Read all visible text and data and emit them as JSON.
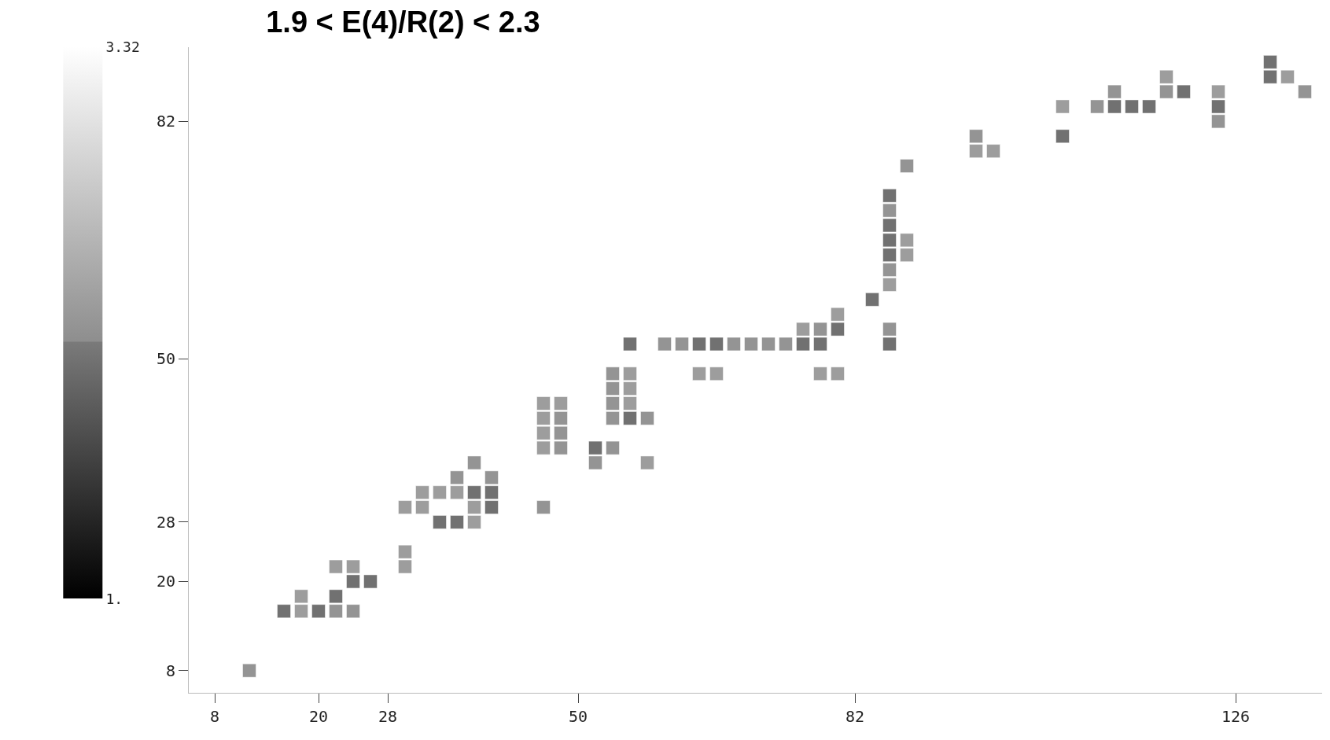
{
  "chart_data": {
    "type": "scatter",
    "title": "1.9 < E(4)/R(2) < 2.3",
    "marker": "square",
    "xlim": [
      5,
      136
    ],
    "xticks": [
      8,
      20,
      28,
      50,
      82,
      126
    ],
    "ylim": [
      5,
      92
    ],
    "yticks": [
      8,
      20,
      28,
      50,
      82
    ],
    "clim": [
      1,
      3.32
    ],
    "cticks": [
      {
        "value": 1,
        "label": "1."
      },
      3.32
    ],
    "series": [
      {
        "x": [
          12,
          16,
          18,
          20,
          22,
          24,
          18,
          22,
          24,
          26,
          22,
          24,
          30,
          30,
          34,
          36,
          38,
          30,
          32,
          38,
          40,
          46,
          32,
          34,
          36,
          38,
          40,
          36,
          40,
          38,
          52,
          58,
          46,
          48,
          52,
          54,
          46,
          48,
          46,
          48,
          54,
          56,
          58,
          46,
          48,
          54,
          56,
          54,
          56,
          54,
          56,
          64,
          66,
          78,
          80,
          56,
          60,
          62,
          64,
          66,
          68,
          70,
          72,
          74,
          76,
          78,
          86,
          76,
          78,
          80,
          86,
          80,
          84,
          86,
          86,
          86,
          88,
          86,
          88,
          86,
          86,
          86,
          88,
          96,
          98,
          96,
          106,
          124,
          106,
          110,
          112,
          114,
          116,
          124,
          112,
          118,
          120,
          124,
          134,
          118,
          130,
          132,
          130
        ],
        "values": [
          8,
          16,
          16,
          16,
          16,
          16,
          18,
          18,
          20,
          20,
          22,
          22,
          22,
          24,
          28,
          28,
          28,
          30,
          30,
          30,
          30,
          30,
          32,
          32,
          32,
          32,
          32,
          34,
          34,
          36,
          36,
          36,
          38,
          38,
          38,
          38,
          40,
          40,
          42,
          42,
          42,
          42,
          42,
          44,
          44,
          44,
          44,
          46,
          46,
          48,
          48,
          48,
          48,
          48,
          48,
          52,
          52,
          52,
          52,
          52,
          52,
          52,
          52,
          52,
          52,
          52,
          52,
          54,
          54,
          54,
          54,
          56,
          58,
          60,
          62,
          64,
          64,
          66,
          66,
          68,
          70,
          72,
          76,
          78,
          78,
          80,
          80,
          82,
          84,
          84,
          84,
          84,
          84,
          84,
          86,
          86,
          86,
          86,
          86,
          88,
          88,
          88,
          90
        ],
        "cvalues": [
          2.15,
          2.0,
          2.25,
          2.0,
          2.15,
          2.15,
          2.25,
          2.0,
          2.0,
          2.0,
          2.25,
          2.25,
          2.25,
          2.25,
          2.0,
          2.0,
          2.25,
          2.25,
          2.25,
          2.25,
          2.0,
          2.15,
          2.25,
          2.25,
          2.25,
          2.0,
          2.0,
          2.15,
          2.15,
          2.15,
          2.15,
          2.25,
          2.25,
          2.15,
          2.0,
          2.15,
          2.25,
          2.15,
          2.25,
          2.15,
          2.15,
          2.0,
          2.15,
          2.25,
          2.25,
          2.15,
          2.25,
          2.15,
          2.25,
          2.15,
          2.25,
          2.25,
          2.25,
          2.25,
          2.25,
          2.0,
          2.15,
          2.15,
          2.0,
          2.0,
          2.15,
          2.15,
          2.15,
          2.15,
          2.0,
          2.0,
          2.0,
          2.25,
          2.15,
          2.0,
          2.15,
          2.25,
          2.0,
          2.25,
          2.15,
          2.0,
          2.25,
          2.0,
          2.25,
          2.0,
          2.15,
          2.0,
          2.15,
          2.25,
          2.25,
          2.15,
          2.0,
          2.15,
          2.25,
          2.15,
          2.0,
          2.0,
          2.0,
          2.0,
          2.15,
          2.15,
          2.0,
          2.25,
          2.15,
          2.25,
          2.0,
          2.25,
          2.0
        ]
      }
    ]
  }
}
